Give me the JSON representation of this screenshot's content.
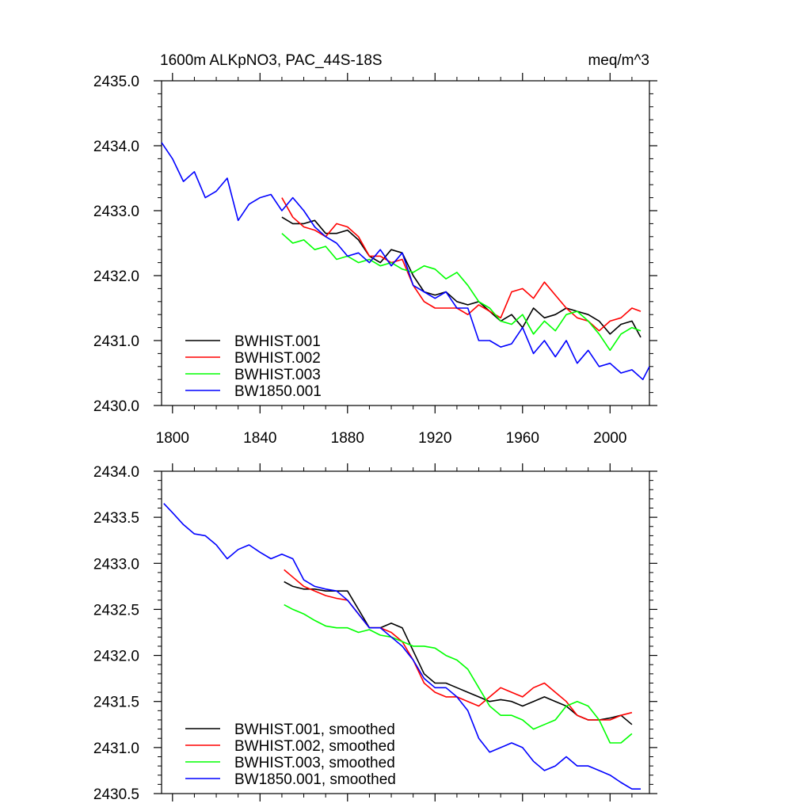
{
  "header": {
    "title": "1600m ALKpNO3, PAC_44S-18S",
    "units": "meq/m^3"
  },
  "x_tick_labels": [
    "1800",
    "1840",
    "1880",
    "1920",
    "1960",
    "2000"
  ],
  "chart_data": [
    {
      "type": "line",
      "title": "1600m ALKpNO3, PAC_44S-18S",
      "xlabel": "",
      "ylabel": "",
      "xlim": [
        1795,
        2018
      ],
      "ylim": [
        2430.0,
        2435.0
      ],
      "xticks": [
        1800,
        1840,
        1880,
        1920,
        1960,
        2000
      ],
      "yticks": [
        2430.0,
        2431.0,
        2432.0,
        2433.0,
        2434.0,
        2435.0
      ],
      "ytick_labels": [
        "2430.0",
        "2431.0",
        "2432.0",
        "2433.0",
        "2434.0",
        "2435.0"
      ],
      "grid": false,
      "legend": "bottom-left",
      "series": [
        {
          "name": "BWHIST.001",
          "color": "#000000",
          "x": [
            1850,
            1855,
            1860,
            1865,
            1870,
            1875,
            1880,
            1885,
            1890,
            1895,
            1900,
            1905,
            1910,
            1915,
            1920,
            1925,
            1930,
            1935,
            1940,
            1945,
            1950,
            1955,
            1960,
            1965,
            1970,
            1975,
            1980,
            1985,
            1990,
            1995,
            2000,
            2005,
            2010,
            2014
          ],
          "y": [
            2432.9,
            2432.8,
            2432.8,
            2432.85,
            2432.65,
            2432.65,
            2432.7,
            2432.55,
            2432.3,
            2432.2,
            2432.4,
            2432.35,
            2432.0,
            2431.75,
            2431.7,
            2431.75,
            2431.6,
            2431.55,
            2431.6,
            2431.45,
            2431.3,
            2431.4,
            2431.2,
            2431.5,
            2431.35,
            2431.4,
            2431.5,
            2431.45,
            2431.4,
            2431.3,
            2431.1,
            2431.25,
            2431.3,
            2431.05
          ]
        },
        {
          "name": "BWHIST.002",
          "color": "#ff0000",
          "x": [
            1850,
            1855,
            1860,
            1865,
            1870,
            1875,
            1880,
            1885,
            1890,
            1895,
            1900,
            1905,
            1910,
            1915,
            1920,
            1925,
            1930,
            1935,
            1940,
            1945,
            1950,
            1955,
            1960,
            1965,
            1970,
            1975,
            1980,
            1985,
            1990,
            1995,
            2000,
            2005,
            2010,
            2014
          ],
          "y": [
            2433.2,
            2432.9,
            2432.75,
            2432.7,
            2432.6,
            2432.8,
            2432.75,
            2432.6,
            2432.3,
            2432.3,
            2432.2,
            2432.25,
            2431.85,
            2431.6,
            2431.5,
            2431.5,
            2431.5,
            2431.4,
            2431.55,
            2431.45,
            2431.35,
            2431.75,
            2431.8,
            2431.65,
            2431.9,
            2431.7,
            2431.5,
            2431.35,
            2431.3,
            2431.15,
            2431.3,
            2431.35,
            2431.5,
            2431.45
          ]
        },
        {
          "name": "BWHIST.003",
          "color": "#00ff00",
          "x": [
            1850,
            1855,
            1860,
            1865,
            1870,
            1875,
            1880,
            1885,
            1890,
            1895,
            1900,
            1905,
            1910,
            1915,
            1920,
            1925,
            1930,
            1935,
            1940,
            1945,
            1950,
            1955,
            1960,
            1965,
            1970,
            1975,
            1980,
            1985,
            1990,
            1995,
            2000,
            2005,
            2010,
            2014
          ],
          "y": [
            2432.65,
            2432.5,
            2432.55,
            2432.4,
            2432.45,
            2432.25,
            2432.3,
            2432.2,
            2432.25,
            2432.15,
            2432.2,
            2432.1,
            2432.05,
            2432.15,
            2432.1,
            2431.95,
            2432.05,
            2431.85,
            2431.6,
            2431.5,
            2431.3,
            2431.25,
            2431.4,
            2431.1,
            2431.3,
            2431.15,
            2431.4,
            2431.45,
            2431.3,
            2431.1,
            2430.85,
            2431.1,
            2431.2,
            2431.15
          ]
        },
        {
          "name": "BW1850.001",
          "color": "#0000ff",
          "x": [
            1795,
            1800,
            1805,
            1810,
            1815,
            1820,
            1825,
            1830,
            1835,
            1840,
            1845,
            1850,
            1855,
            1860,
            1865,
            1870,
            1875,
            1880,
            1885,
            1890,
            1895,
            1900,
            1905,
            1910,
            1915,
            1920,
            1925,
            1930,
            1935,
            1940,
            1945,
            1950,
            1955,
            1960,
            1965,
            1970,
            1975,
            1980,
            1985,
            1990,
            1995,
            2000,
            2005,
            2010,
            2015,
            2018
          ],
          "y": [
            2434.05,
            2433.8,
            2433.45,
            2433.6,
            2433.2,
            2433.3,
            2433.5,
            2432.85,
            2433.1,
            2433.2,
            2433.25,
            2433.0,
            2433.2,
            2433.0,
            2432.75,
            2432.6,
            2432.5,
            2432.3,
            2432.35,
            2432.2,
            2432.4,
            2432.15,
            2432.35,
            2431.85,
            2431.75,
            2431.65,
            2431.75,
            2431.5,
            2431.5,
            2431.0,
            2431.0,
            2430.9,
            2430.95,
            2431.2,
            2430.8,
            2431.0,
            2430.75,
            2431.0,
            2430.65,
            2430.85,
            2430.6,
            2430.65,
            2430.5,
            2430.55,
            2430.4,
            2430.6
          ]
        }
      ]
    },
    {
      "type": "line",
      "title": "",
      "xlabel": "",
      "ylabel": "",
      "xlim": [
        1795,
        2018
      ],
      "ylim": [
        2430.5,
        2434.0
      ],
      "xticks": [
        1800,
        1840,
        1880,
        1920,
        1960,
        2000
      ],
      "yticks": [
        2430.5,
        2431.0,
        2431.5,
        2432.0,
        2432.5,
        2433.0,
        2433.5,
        2434.0
      ],
      "ytick_labels": [
        "2430.5",
        "2431.0",
        "2431.5",
        "2432.0",
        "2432.5",
        "2433.0",
        "2433.5",
        "2434.0"
      ],
      "grid": false,
      "legend": "bottom-left",
      "series": [
        {
          "name": "BWHIST.001, smoothed",
          "color": "#000000",
          "x": [
            1851,
            1855,
            1860,
            1865,
            1870,
            1875,
            1880,
            1885,
            1890,
            1895,
            1900,
            1905,
            1910,
            1915,
            1920,
            1925,
            1930,
            1935,
            1940,
            1945,
            1950,
            1955,
            1960,
            1965,
            1970,
            1975,
            1980,
            1985,
            1990,
            1995,
            2000,
            2005,
            2010
          ],
          "y": [
            2432.8,
            2432.75,
            2432.72,
            2432.72,
            2432.7,
            2432.7,
            2432.7,
            2432.5,
            2432.3,
            2432.3,
            2432.35,
            2432.3,
            2432.05,
            2431.8,
            2431.7,
            2431.7,
            2431.65,
            2431.6,
            2431.55,
            2431.5,
            2431.52,
            2431.5,
            2431.45,
            2431.5,
            2431.55,
            2431.5,
            2431.45,
            2431.35,
            2431.3,
            2431.3,
            2431.32,
            2431.35,
            2431.25
          ]
        },
        {
          "name": "BWHIST.002, smoothed",
          "color": "#ff0000",
          "x": [
            1851,
            1855,
            1860,
            1865,
            1870,
            1875,
            1880,
            1885,
            1890,
            1895,
            1900,
            1905,
            1910,
            1915,
            1920,
            1925,
            1930,
            1935,
            1940,
            1945,
            1950,
            1955,
            1960,
            1965,
            1970,
            1975,
            1980,
            1985,
            1990,
            1995,
            2000,
            2005,
            2010
          ],
          "y": [
            2432.93,
            2432.85,
            2432.75,
            2432.7,
            2432.65,
            2432.62,
            2432.6,
            2432.45,
            2432.3,
            2432.3,
            2432.25,
            2432.15,
            2431.95,
            2431.7,
            2431.6,
            2431.55,
            2431.55,
            2431.5,
            2431.45,
            2431.55,
            2431.65,
            2431.6,
            2431.55,
            2431.65,
            2431.7,
            2431.6,
            2431.5,
            2431.35,
            2431.3,
            2431.3,
            2431.3,
            2431.35,
            2431.38
          ]
        },
        {
          "name": "BWHIST.003, smoothed",
          "color": "#00ff00",
          "x": [
            1851,
            1855,
            1860,
            1865,
            1870,
            1875,
            1880,
            1885,
            1890,
            1895,
            1900,
            1905,
            1910,
            1915,
            1920,
            1925,
            1930,
            1935,
            1940,
            1945,
            1950,
            1955,
            1960,
            1965,
            1970,
            1975,
            1980,
            1985,
            1990,
            1995,
            2000,
            2005,
            2010
          ],
          "y": [
            2432.55,
            2432.5,
            2432.45,
            2432.38,
            2432.32,
            2432.3,
            2432.3,
            2432.25,
            2432.28,
            2432.22,
            2432.2,
            2432.15,
            2432.1,
            2432.1,
            2432.08,
            2432.0,
            2431.95,
            2431.85,
            2431.65,
            2431.45,
            2431.35,
            2431.35,
            2431.3,
            2431.2,
            2431.25,
            2431.3,
            2431.45,
            2431.5,
            2431.45,
            2431.3,
            2431.05,
            2431.05,
            2431.15
          ]
        },
        {
          "name": "BW1850.001, smoothed",
          "color": "#0000ff",
          "x": [
            1796,
            1800,
            1805,
            1810,
            1815,
            1820,
            1825,
            1830,
            1835,
            1840,
            1845,
            1850,
            1855,
            1860,
            1865,
            1870,
            1875,
            1880,
            1885,
            1890,
            1895,
            1900,
            1905,
            1910,
            1915,
            1920,
            1925,
            1930,
            1935,
            1940,
            1945,
            1950,
            1955,
            1960,
            1965,
            1970,
            1975,
            1980,
            1985,
            1990,
            1995,
            2000,
            2005,
            2010,
            2014
          ],
          "y": [
            2433.65,
            2433.55,
            2433.42,
            2433.32,
            2433.3,
            2433.2,
            2433.05,
            2433.15,
            2433.2,
            2433.12,
            2433.05,
            2433.1,
            2433.05,
            2432.82,
            2432.75,
            2432.72,
            2432.7,
            2432.6,
            2432.45,
            2432.3,
            2432.3,
            2432.2,
            2432.1,
            2431.95,
            2431.75,
            2431.65,
            2431.65,
            2431.55,
            2431.4,
            2431.1,
            2430.95,
            2431.0,
            2431.05,
            2431.0,
            2430.85,
            2430.75,
            2430.8,
            2430.9,
            2430.8,
            2430.8,
            2430.75,
            2430.7,
            2430.62,
            2430.55,
            2430.55
          ]
        }
      ]
    }
  ]
}
